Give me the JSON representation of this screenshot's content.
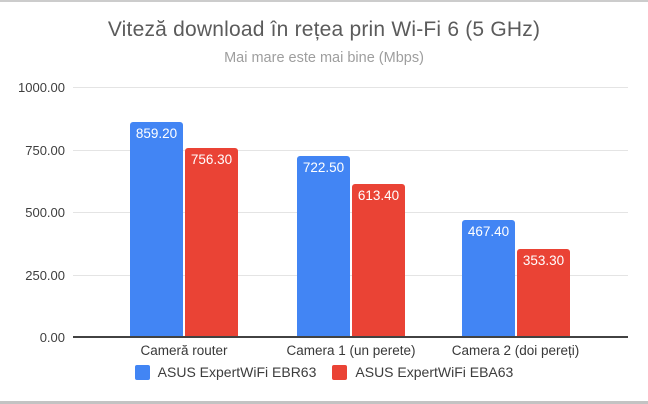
{
  "chart_data": {
    "type": "bar",
    "title": "Viteză download în rețea prin Wi-Fi 6 (5 GHz)",
    "subtitle": "Mai mare este mai bine (Mbps)",
    "categories": [
      "Cameră router",
      "Camera 1 (un perete)",
      "Camera 2 (doi pereți)"
    ],
    "series": [
      {
        "name": "ASUS ExpertWiFi EBR63",
        "color": "#4285F4",
        "values": [
          859.2,
          722.5,
          467.4
        ]
      },
      {
        "name": "ASUS ExpertWiFi EBA63",
        "color": "#EA4335",
        "values": [
          756.3,
          613.4,
          353.3
        ]
      }
    ],
    "value_label_format": "2-decimals",
    "ylim": [
      0,
      1000
    ],
    "yticks": [
      0,
      250,
      500,
      750,
      1000
    ],
    "ytick_labels": [
      "0.00",
      "250.00",
      "500.00",
      "750.00",
      "1000.00"
    ],
    "grid": true,
    "legend_position": "bottom",
    "colors": {
      "title": "#5b5b5b",
      "subtitle": "#9e9e9e",
      "gridline": "#e4e4e4",
      "axis_line": "#424242",
      "bar_label_text": "#ffffff"
    }
  }
}
